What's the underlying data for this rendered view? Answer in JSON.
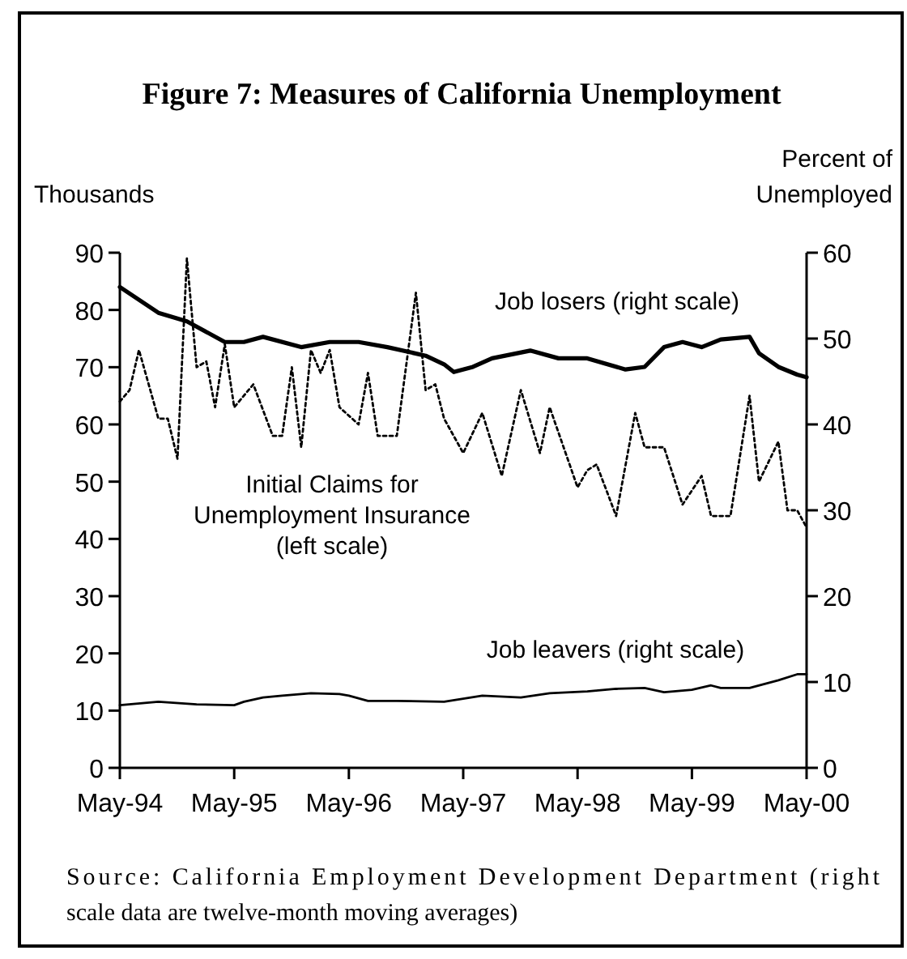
{
  "chart_data": {
    "type": "line",
    "title": "Figure 7: Measures of California Unemployment",
    "ylabel": "Thousands",
    "y2label": "Percent of Unemployed",
    "annotations": [
      "Source:  California Employment Development Department (right scale data are twelve-month moving averages)"
    ],
    "xlim": [
      "1994-05",
      "2000-05"
    ],
    "xticks": [
      {
        "value": "1994-05",
        "label": "May-94"
      },
      {
        "value": "1995-05",
        "label": "May-95"
      },
      {
        "value": "1996-05",
        "label": "May-96"
      },
      {
        "value": "1997-05",
        "label": "May-97"
      },
      {
        "value": "1998-05",
        "label": "May-98"
      },
      {
        "value": "1999-05",
        "label": "May-99"
      },
      {
        "value": "2000-05",
        "label": "May-00"
      }
    ],
    "ylim": [
      0,
      90
    ],
    "yticks": [
      0,
      10,
      20,
      30,
      40,
      50,
      60,
      70,
      80,
      90
    ],
    "y2lim": [
      0,
      60
    ],
    "y2ticks": [
      0,
      10,
      20,
      30,
      40,
      50,
      60
    ],
    "grid": false,
    "legend": false,
    "marker": "none",
    "series": [
      {
        "name": "Job losers (right scale)",
        "color": "#000000",
        "axis": "y2",
        "line_style": "solid",
        "x": [
          "1994-05",
          "1994-09",
          "1994-12",
          "1995-04",
          "1995-06",
          "1995-08",
          "1995-12",
          "1996-03",
          "1996-06",
          "1996-09",
          "1997-01",
          "1997-03",
          "1997-04",
          "1997-06",
          "1997-08",
          "1997-12",
          "1998-03",
          "1998-06",
          "1998-10",
          "1998-12",
          "1999-02",
          "1999-04",
          "1999-06",
          "1999-08",
          "1999-11",
          "1999-12",
          "2000-02",
          "2000-04",
          "2000-05"
        ],
        "values": [
          56,
          53,
          52,
          49.6,
          49.6,
          50.2,
          49,
          49.6,
          49.6,
          49,
          48,
          47,
          46.1,
          46.7,
          47.7,
          48.6,
          47.7,
          47.7,
          46.4,
          46.7,
          49,
          49.6,
          49,
          49.9,
          50.2,
          48.3,
          46.7,
          45.8,
          45.5
        ]
      },
      {
        "name": "Initial Claims for Unemployment Insurance (left scale)",
        "color": "#000000",
        "axis": "y",
        "line_style": "dotted",
        "x": [
          "1994-05",
          "1994-06",
          "1994-07",
          "1994-09",
          "1994-10",
          "1994-11",
          "1994-12",
          "1995-01",
          "1995-02",
          "1995-03",
          "1995-04",
          "1995-05",
          "1995-07",
          "1995-09",
          "1995-10",
          "1995-11",
          "1995-12",
          "1996-01",
          "1996-02",
          "1996-03",
          "1996-04",
          "1996-06",
          "1996-07",
          "1996-08",
          "1996-10",
          "1996-12",
          "1997-01",
          "1997-02",
          "1997-03",
          "1997-05",
          "1997-07",
          "1997-09",
          "1997-11",
          "1998-01",
          "1998-02",
          "1998-05",
          "1998-06",
          "1998-07",
          "1998-09",
          "1998-11",
          "1998-12",
          "1999-02",
          "1999-04",
          "1999-06",
          "1999-07",
          "1999-09",
          "1999-11",
          "1999-12",
          "2000-02",
          "2000-03",
          "2000-04",
          "2000-05"
        ],
        "values": [
          64,
          66,
          73,
          61,
          61,
          54,
          89,
          70,
          71,
          63,
          74,
          63,
          67,
          58,
          58,
          70,
          56,
          73,
          69,
          73,
          63,
          60,
          69,
          58,
          58,
          83,
          66,
          67,
          61,
          55,
          62,
          51,
          66,
          55,
          63,
          49,
          52,
          53,
          44,
          62,
          56,
          56,
          46,
          51,
          44,
          44,
          65,
          50,
          57,
          45,
          45,
          42
        ]
      },
      {
        "name": "Job leavers (right scale)",
        "color": "#000000",
        "axis": "y2",
        "line_style": "solid",
        "x": [
          "1994-05",
          "1994-09",
          "1995-01",
          "1995-05",
          "1995-06",
          "1995-08",
          "1995-10",
          "1996-01",
          "1996-04",
          "1996-05",
          "1996-07",
          "1996-10",
          "1997-03",
          "1997-07",
          "1997-11",
          "1998-02",
          "1998-06",
          "1998-09",
          "1998-12",
          "1999-02",
          "1999-05",
          "1999-07",
          "1999-08",
          "1999-11",
          "2000-02",
          "2000-04",
          "2000-05"
        ],
        "values": [
          7.3,
          7.7,
          7.4,
          7.3,
          7.7,
          8.2,
          8.4,
          8.7,
          8.6,
          8.4,
          7.8,
          7.8,
          7.7,
          8.4,
          8.2,
          8.7,
          8.9,
          9.2,
          9.3,
          8.8,
          9.1,
          9.6,
          9.3,
          9.3,
          10.2,
          10.9,
          10.9
        ]
      }
    ]
  }
}
